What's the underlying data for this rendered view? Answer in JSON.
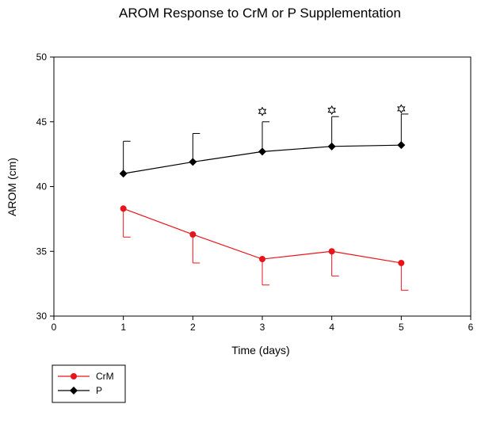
{
  "chart_data": {
    "type": "line",
    "title": "AROM Response to CrM or P Supplementation",
    "xlabel": "Time (days)",
    "ylabel": "AROM (cm)",
    "xlim": [
      0,
      6
    ],
    "ylim": [
      30,
      50
    ],
    "x_ticks": [
      0,
      1,
      2,
      3,
      4,
      5,
      6
    ],
    "x_tick_labels": [
      "0",
      "1",
      "2",
      "3",
      "4",
      "5",
      "6"
    ],
    "y_ticks": [
      30,
      35,
      40,
      45,
      50
    ],
    "y_tick_labels": [
      "30",
      "35",
      "40",
      "45",
      "50"
    ],
    "grid": false,
    "legend_position": "bottom-left, below plot",
    "series": [
      {
        "name": "CrM",
        "color": "#e8141c",
        "marker": "circle",
        "x": [
          1,
          2,
          3,
          4,
          5
        ],
        "y": [
          38.3,
          36.3,
          34.4,
          35.0,
          34.1
        ],
        "error_down": [
          2.2,
          2.2,
          2.0,
          1.9,
          2.1
        ]
      },
      {
        "name": "P",
        "color": "#000000",
        "marker": "diamond",
        "x": [
          1,
          2,
          3,
          4,
          5
        ],
        "y": [
          41.0,
          41.9,
          42.7,
          43.1,
          43.2
        ],
        "error_up": [
          2.5,
          2.2,
          2.3,
          2.3,
          2.4
        ]
      }
    ],
    "significance_markers": {
      "symbol": "star-outline",
      "x": [
        3,
        4,
        5
      ],
      "y": [
        45.8,
        45.9,
        46.0
      ]
    }
  }
}
